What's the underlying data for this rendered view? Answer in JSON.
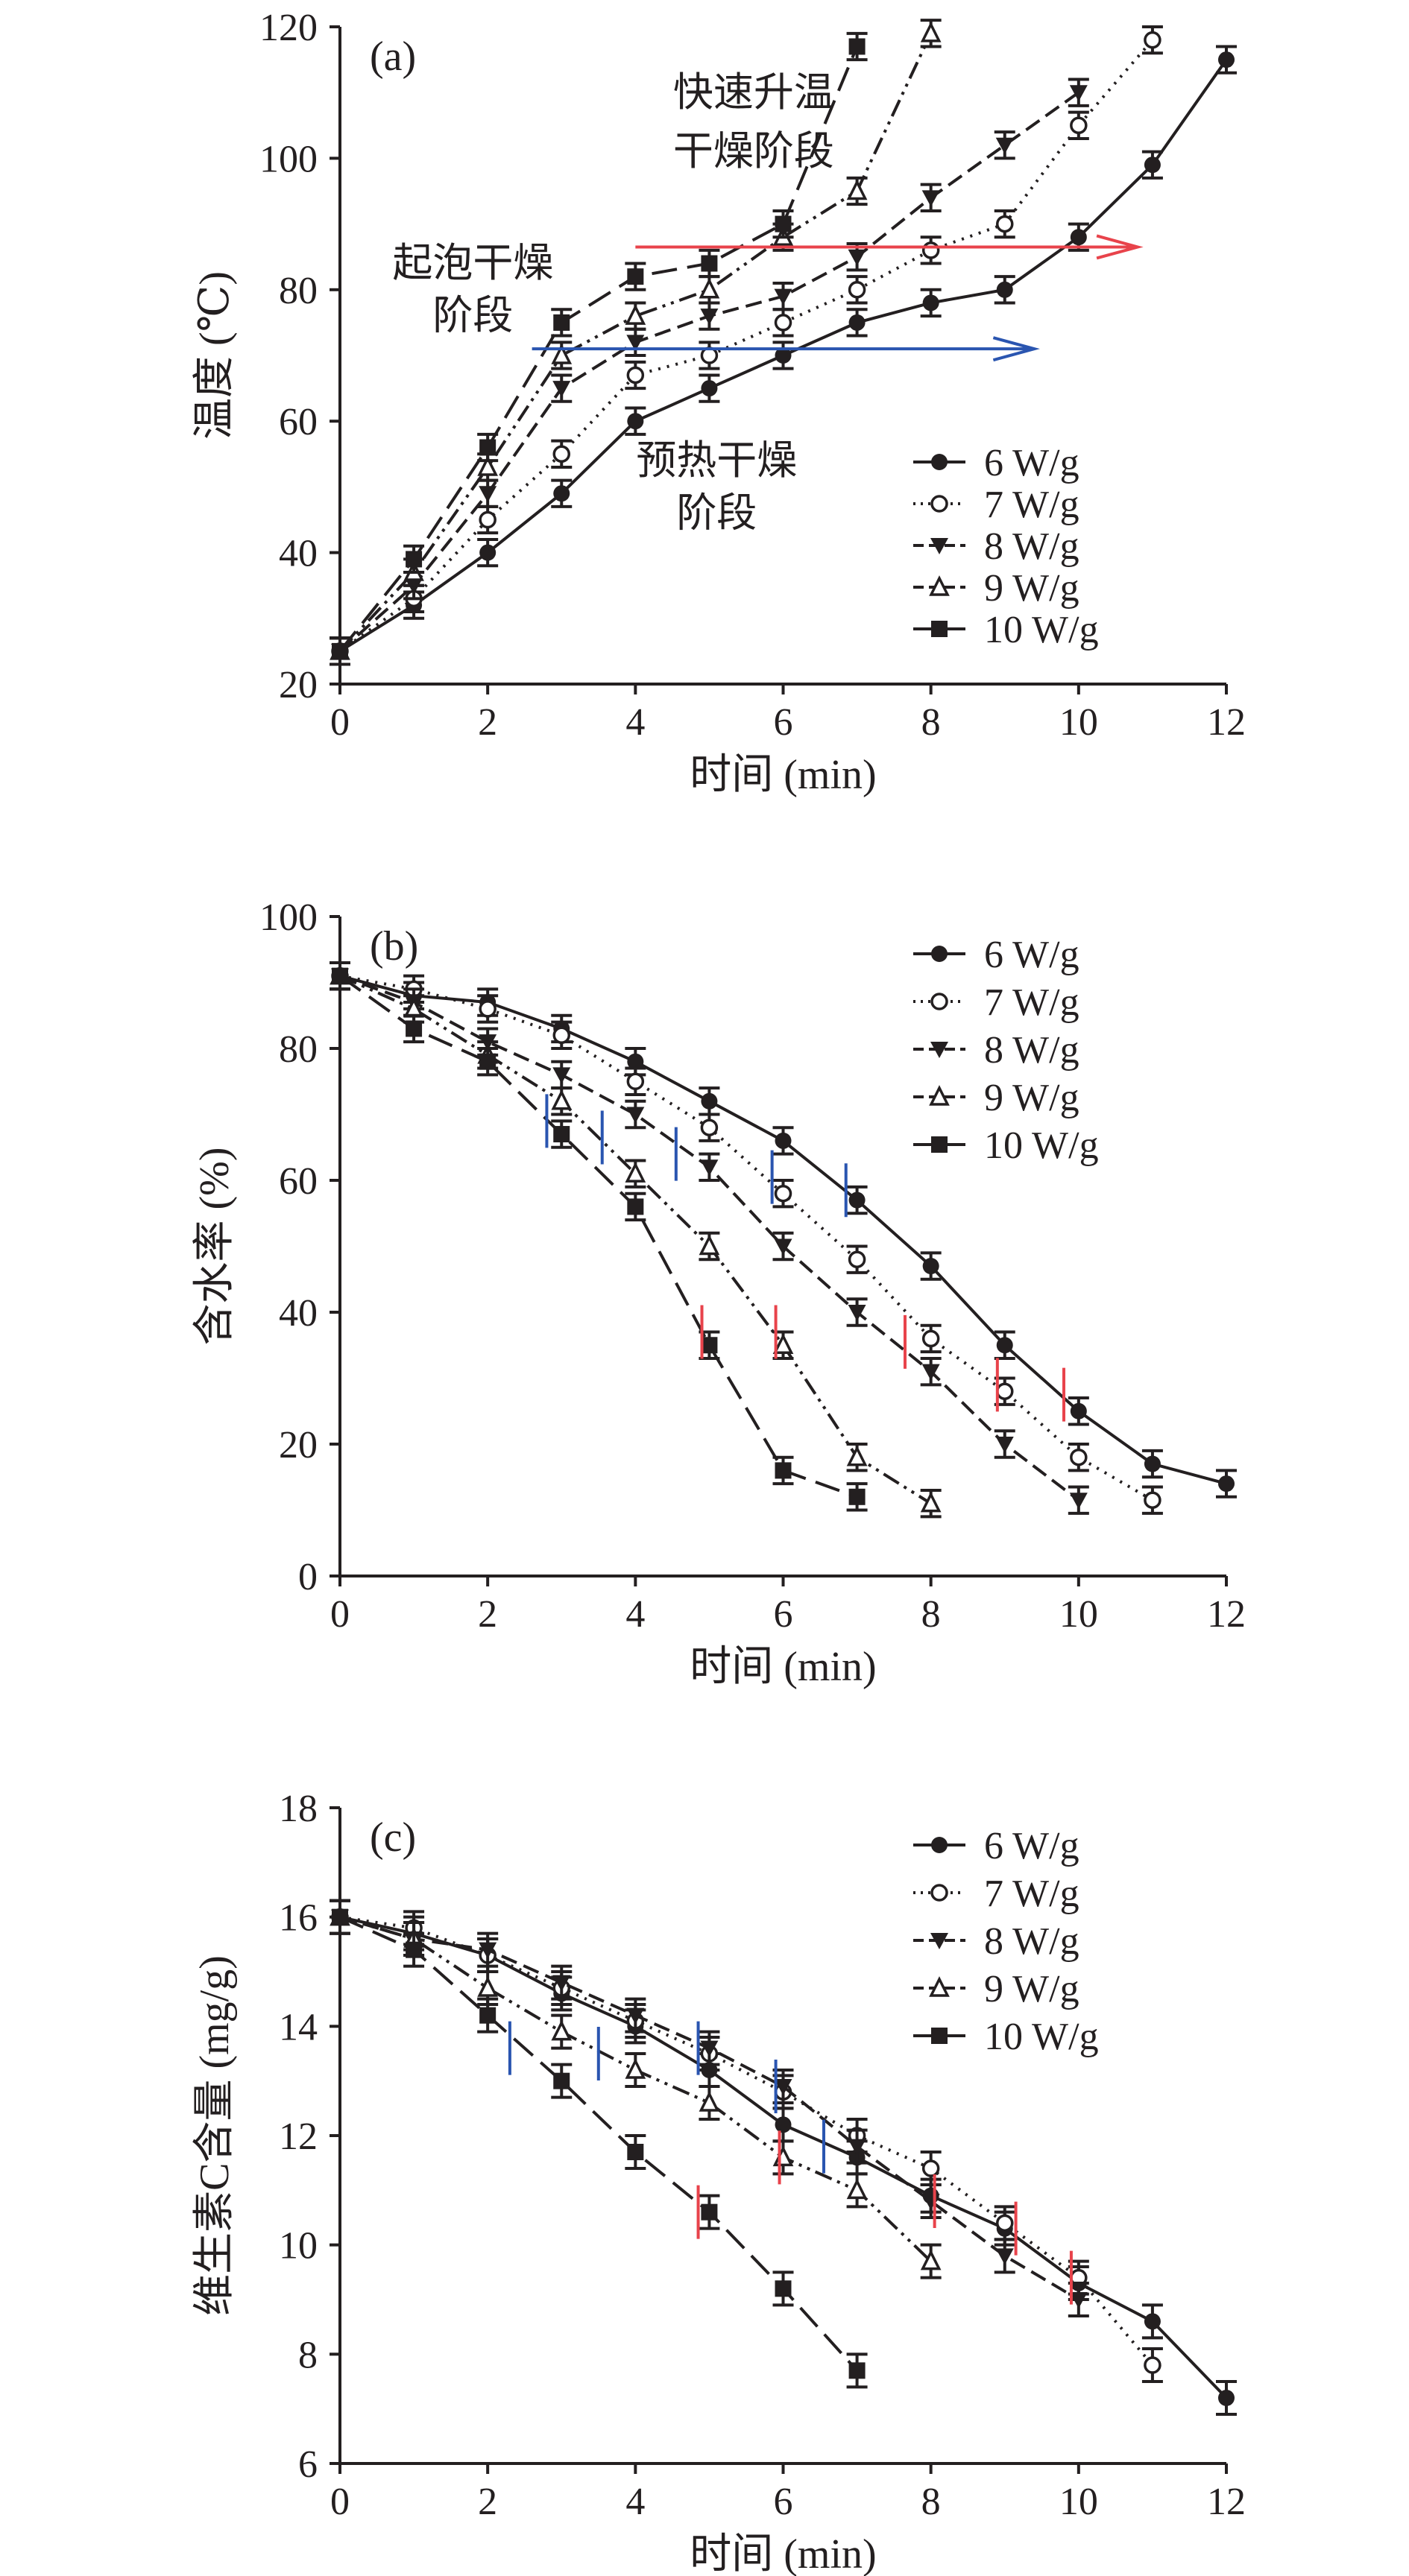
{
  "chart_data": [
    {
      "type": "line",
      "panel_label": "(a)",
      "xlabel": "时间 (min)",
      "ylabel": "温度 (℃)",
      "xlim": [
        0,
        12
      ],
      "ylim": [
        20,
        120
      ],
      "xticks": [
        0,
        2,
        4,
        6,
        8,
        10,
        12
      ],
      "yticks": [
        20,
        40,
        60,
        80,
        100,
        120
      ],
      "legend": "right-middle",
      "error": 2,
      "series": [
        {
          "name": "6 W/g",
          "x": [
            0,
            1,
            2,
            3,
            4,
            5,
            6,
            7,
            8,
            9,
            10,
            11,
            12
          ],
          "values": [
            25,
            32,
            40,
            49,
            60,
            65,
            70,
            75,
            78,
            80,
            88,
            99,
            115
          ]
        },
        {
          "name": "7 W/g",
          "x": [
            0,
            1,
            2,
            3,
            4,
            5,
            6,
            7,
            8,
            9,
            10,
            11
          ],
          "values": [
            25,
            33,
            45,
            55,
            67,
            70,
            75,
            80,
            86,
            90,
            105,
            118
          ]
        },
        {
          "name": "8 W/g",
          "x": [
            0,
            1,
            2,
            3,
            4,
            5,
            6,
            7,
            8,
            9,
            10
          ],
          "values": [
            25,
            35,
            49,
            65,
            72,
            76,
            79,
            85,
            94,
            102,
            110
          ]
        },
        {
          "name": "9 W/g",
          "x": [
            0,
            1,
            2,
            3,
            4,
            5,
            6,
            7,
            8
          ],
          "values": [
            25,
            37,
            53,
            70,
            76,
            80,
            88,
            95,
            119
          ]
        },
        {
          "name": "10 W/g",
          "x": [
            0,
            1,
            2,
            3,
            4,
            5,
            6,
            7
          ],
          "values": [
            25,
            39,
            56,
            75,
            82,
            84,
            90,
            117
          ]
        }
      ],
      "arrows": [
        {
          "color": "#e8434b",
          "y": 86.5,
          "x": [
            4,
            10.8
          ]
        },
        {
          "color": "#2a55b0",
          "y": 71,
          "x": [
            2.6,
            9.4
          ]
        }
      ],
      "annotations": [
        {
          "lines": [
            "快速升温",
            "干燥阶段"
          ],
          "x": 5.6,
          "y": [
            108,
            99
          ]
        },
        {
          "lines": [
            "起泡干燥",
            "阶段"
          ],
          "x": 1.8,
          "y": [
            82,
            74
          ]
        },
        {
          "lines": [
            "预热干燥",
            "阶段"
          ],
          "x": 5.1,
          "y": [
            52,
            44
          ]
        }
      ]
    },
    {
      "type": "line",
      "panel_label": "(b)",
      "xlabel": "时间 (min)",
      "ylabel": "含水率 (%)",
      "xlim": [
        0,
        12
      ],
      "ylim": [
        0,
        100
      ],
      "xticks": [
        0,
        2,
        4,
        6,
        8,
        10,
        12
      ],
      "yticks": [
        0,
        20,
        40,
        60,
        80,
        100
      ],
      "legend": "top-right",
      "error": 2,
      "series": [
        {
          "name": "6 W/g",
          "x": [
            0,
            1,
            2,
            3,
            4,
            5,
            6,
            7,
            8,
            9,
            10,
            11,
            12
          ],
          "values": [
            91,
            88,
            87,
            83,
            78,
            72,
            66,
            57,
            47,
            35,
            25,
            17,
            14
          ]
        },
        {
          "name": "7 W/g",
          "x": [
            0,
            1,
            2,
            3,
            4,
            5,
            6,
            7,
            8,
            9,
            10,
            11
          ],
          "values": [
            91,
            89,
            86,
            82,
            75,
            68,
            58,
            48,
            36,
            28,
            18,
            11.5
          ]
        },
        {
          "name": "8 W/g",
          "x": [
            0,
            1,
            2,
            3,
            4,
            5,
            6,
            7,
            8,
            9,
            10
          ],
          "values": [
            91,
            87,
            81,
            76,
            70,
            62,
            50,
            40,
            31,
            20,
            11.5
          ]
        },
        {
          "name": "9 W/g",
          "x": [
            0,
            1,
            2,
            3,
            4,
            5,
            6,
            7,
            8
          ],
          "values": [
            91,
            86,
            79,
            72,
            61,
            50,
            35,
            18,
            11
          ]
        },
        {
          "name": "10 W/g",
          "x": [
            0,
            1,
            2,
            3,
            4,
            5,
            6,
            7
          ],
          "values": [
            91,
            83,
            78,
            67,
            56,
            35,
            16,
            12
          ]
        }
      ],
      "markers": [
        {
          "color": "#2a55b0",
          "points": [
            [
              2.8,
              69
            ],
            [
              3.55,
              66.5
            ],
            [
              4.55,
              64
            ],
            [
              5.85,
              60.5
            ],
            [
              6.85,
              58.5
            ]
          ]
        },
        {
          "color": "#e8434b",
          "points": [
            [
              4.9,
              37
            ],
            [
              5.9,
              37
            ],
            [
              7.65,
              35.5
            ],
            [
              8.9,
              29
            ],
            [
              9.8,
              27.5
            ]
          ]
        }
      ]
    },
    {
      "type": "line",
      "panel_label": "(c)",
      "xlabel": "时间 (min)",
      "ylabel": "维生素C含量 (mg/g)",
      "xlim": [
        0,
        12
      ],
      "ylim": [
        6,
        18
      ],
      "xticks": [
        0,
        2,
        4,
        6,
        8,
        10,
        12
      ],
      "yticks": [
        6,
        8,
        10,
        12,
        14,
        16,
        18
      ],
      "legend": "top-right",
      "error": 0.3,
      "series": [
        {
          "name": "6 W/g",
          "x": [
            0,
            1,
            2,
            3,
            4,
            5,
            6,
            7,
            8,
            9,
            10,
            11,
            12
          ],
          "values": [
            16,
            15.7,
            15.3,
            14.6,
            14.0,
            13.2,
            12.2,
            11.6,
            10.9,
            10.3,
            9.3,
            8.6,
            7.2
          ]
        },
        {
          "name": "7 W/g",
          "x": [
            0,
            1,
            2,
            3,
            4,
            5,
            6,
            7,
            8,
            9,
            10,
            11
          ],
          "values": [
            16,
            15.8,
            15.3,
            14.7,
            14.1,
            13.5,
            12.8,
            12.0,
            11.4,
            10.4,
            9.4,
            7.8
          ]
        },
        {
          "name": "8 W/g",
          "x": [
            0,
            1,
            2,
            3,
            4,
            5,
            6,
            7,
            8,
            9,
            10
          ],
          "values": [
            16,
            15.6,
            15.4,
            14.8,
            14.2,
            13.6,
            12.9,
            11.8,
            10.8,
            9.8,
            9.0
          ]
        },
        {
          "name": "9 W/g",
          "x": [
            0,
            1,
            2,
            3,
            4,
            5,
            6,
            7,
            8
          ],
          "values": [
            16,
            15.6,
            14.7,
            13.9,
            13.2,
            12.6,
            11.6,
            11.0,
            9.7
          ]
        },
        {
          "name": "10 W/g",
          "x": [
            0,
            1,
            2,
            3,
            4,
            5,
            6,
            7
          ],
          "values": [
            16,
            15.4,
            14.2,
            13.0,
            11.7,
            10.6,
            9.2,
            7.7
          ]
        }
      ],
      "markers": [
        {
          "color": "#2a55b0",
          "points": [
            [
              2.3,
              13.6
            ],
            [
              3.5,
              13.5
            ],
            [
              4.85,
              13.6
            ],
            [
              5.9,
              12.9
            ],
            [
              6.55,
              11.8
            ]
          ]
        },
        {
          "color": "#e8434b",
          "points": [
            [
              4.85,
              10.6
            ],
            [
              5.95,
              11.6
            ],
            [
              8.05,
              10.8
            ],
            [
              9.15,
              10.3
            ],
            [
              9.9,
              9.4
            ]
          ]
        }
      ]
    }
  ],
  "colors": {
    "axis": "#231f20",
    "red": "#e8434b",
    "blue": "#2a55b0"
  }
}
